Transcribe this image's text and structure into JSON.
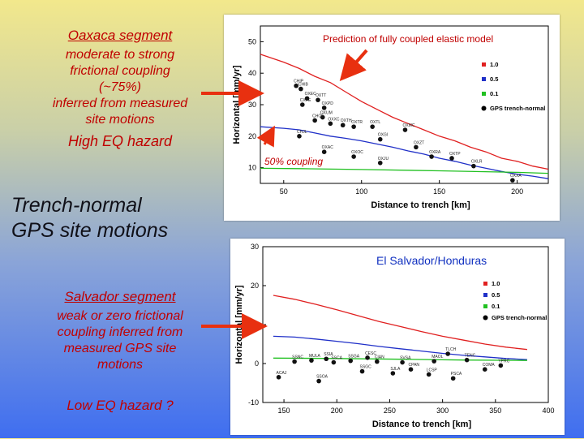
{
  "left": {
    "oaxaca_title": "Oaxaca segment",
    "oaxaca_desc": [
      "moderate to strong",
      "frictional coupling",
      "(~75%)",
      "inferred from measured",
      "site motions"
    ],
    "oaxaca_hazard": "High EQ hazard",
    "trench_title": [
      "Trench-normal",
      "GPS site motions"
    ],
    "salvador_title": "Salvador segment",
    "salvador_desc": [
      "weak or zero frictional",
      "coupling inferred from",
      "measured GPS site",
      "motions"
    ],
    "salvador_hazard": "Low EQ hazard ?"
  },
  "colors": {
    "model_high": "#e02020",
    "model_mid": "#2030c8",
    "model_low": "#20c020",
    "arrow": "#e83010",
    "annotation": "#c00000"
  },
  "chart_data": [
    {
      "type": "scatter",
      "annotation": "Prediction of fully coupled elastic model",
      "inner_label": "50% coupling",
      "xlabel": "Distance to trench [km]",
      "ylabel": "Horizontal [mm/yr]",
      "xlim": [
        35,
        220
      ],
      "ylim": [
        5,
        55
      ],
      "xticks": [
        50,
        100,
        150,
        200
      ],
      "yticks": [
        10,
        20,
        30,
        40,
        50
      ],
      "legend_position": "right",
      "legend": [
        {
          "label": "1.0",
          "color": "#e02020"
        },
        {
          "label": "0.5",
          "color": "#2030c8"
        },
        {
          "label": "0.1",
          "color": "#20c020"
        },
        {
          "label": "GPS trench-normal",
          "color": "#000000"
        }
      ],
      "series": [
        {
          "name": "1.0",
          "color": "#e02020",
          "x": [
            35,
            50,
            60,
            70,
            80,
            90,
            100,
            110,
            120,
            130,
            140,
            150,
            160,
            170,
            180,
            190,
            200,
            210,
            220
          ],
          "y": [
            46,
            43.5,
            41.5,
            39,
            37,
            34,
            31,
            28.5,
            26,
            24,
            22,
            20,
            18.5,
            16.5,
            15,
            13,
            12,
            10.5,
            9.5
          ]
        },
        {
          "name": "0.5",
          "color": "#2030c8",
          "x": [
            35,
            50,
            60,
            70,
            80,
            90,
            100,
            110,
            120,
            130,
            140,
            150,
            160,
            170,
            180,
            190,
            200,
            210,
            220
          ],
          "y": [
            23,
            22.5,
            22,
            21,
            20,
            19.3,
            18.5,
            17.5,
            16.5,
            15.3,
            14.3,
            13,
            12,
            10.8,
            9.8,
            8.8,
            7.9,
            7.3,
            6.5
          ]
        },
        {
          "name": "0.1",
          "color": "#20c020",
          "x": [
            35,
            60,
            100,
            150,
            200,
            220
          ],
          "y": [
            9.8,
            9.7,
            9.4,
            9,
            8.5,
            8.2
          ]
        }
      ],
      "points": [
        {
          "x": 58,
          "y": 36,
          "label": "CHIP"
        },
        {
          "x": 61,
          "y": 35,
          "label": "CHIB"
        },
        {
          "x": 65,
          "y": 32,
          "label": "OXEC"
        },
        {
          "x": 72,
          "y": 31.5,
          "label": "OXTT"
        },
        {
          "x": 62,
          "y": 30,
          "label": "CXPE"
        },
        {
          "x": 76,
          "y": 29,
          "label": "OXPD"
        },
        {
          "x": 75,
          "y": 26,
          "label": "OXUM"
        },
        {
          "x": 70,
          "y": 25,
          "label": "CHOE"
        },
        {
          "x": 80,
          "y": 24,
          "label": "OXXC"
        },
        {
          "x": 88,
          "y": 23.5,
          "label": "OXTH"
        },
        {
          "x": 95,
          "y": 23,
          "label": "OXTR"
        },
        {
          "x": 107,
          "y": 23,
          "label": "OXTL"
        },
        {
          "x": 128,
          "y": 22,
          "label": "OXMC"
        },
        {
          "x": 60,
          "y": 20,
          "label": "CHJL"
        },
        {
          "x": 112,
          "y": 19,
          "label": "OXGI"
        },
        {
          "x": 135,
          "y": 16.5,
          "label": "OXZT"
        },
        {
          "x": 76,
          "y": 15,
          "label": "OXAC"
        },
        {
          "x": 95,
          "y": 13.5,
          "label": "OXOC"
        },
        {
          "x": 145,
          "y": 13.5,
          "label": "OXRA"
        },
        {
          "x": 158,
          "y": 13,
          "label": "OXTP"
        },
        {
          "x": 112,
          "y": 11.5,
          "label": "OXJU"
        },
        {
          "x": 172,
          "y": 10.5,
          "label": "OXLR"
        },
        {
          "x": 197,
          "y": 6,
          "label": "OXXA"
        }
      ]
    },
    {
      "type": "scatter",
      "title": "El Salvador/Honduras",
      "xlabel": "Distance to trench [km]",
      "ylabel": "Horizontal [mm/yr]",
      "xlim": [
        130,
        400
      ],
      "ylim": [
        -10,
        30
      ],
      "xticks": [
        150,
        200,
        250,
        300,
        350,
        400
      ],
      "yticks": [
        -10,
        0,
        10,
        20,
        30
      ],
      "legend_position": "right",
      "legend": [
        {
          "label": "1.0",
          "color": "#e02020"
        },
        {
          "label": "0.5",
          "color": "#2030c8"
        },
        {
          "label": "0.1",
          "color": "#20c020"
        },
        {
          "label": "GPS trench-normal",
          "color": "#000000"
        }
      ],
      "series": [
        {
          "name": "1.0",
          "color": "#e02020",
          "x": [
            140,
            160,
            180,
            200,
            220,
            240,
            260,
            280,
            300,
            320,
            340,
            360,
            380
          ],
          "y": [
            17.5,
            16.5,
            15.2,
            13.8,
            12.3,
            10.8,
            9.5,
            8.2,
            7,
            6,
            5,
            4.2,
            3.6
          ]
        },
        {
          "name": "0.5",
          "color": "#2030c8",
          "x": [
            140,
            160,
            180,
            200,
            220,
            240,
            260,
            280,
            300,
            320,
            340,
            360,
            380
          ],
          "y": [
            7,
            6.8,
            6.3,
            5.7,
            5.1,
            4.4,
            3.8,
            3.2,
            2.6,
            2.1,
            1.7,
            1.3,
            1
          ]
        },
        {
          "name": "0.1",
          "color": "#20c020",
          "x": [
            140,
            200,
            260,
            320,
            380
          ],
          "y": [
            1.4,
            1.3,
            1.1,
            0.9,
            0.8
          ]
        }
      ],
      "points": [
        {
          "x": 160,
          "y": 0.5,
          "label": "SSNC"
        },
        {
          "x": 176,
          "y": 0.8,
          "label": "MULA"
        },
        {
          "x": 190,
          "y": 1.2,
          "label": "SSIA"
        },
        {
          "x": 197,
          "y": 0.3,
          "label": "SSCA"
        },
        {
          "x": 213,
          "y": 0.7,
          "label": "SSGA"
        },
        {
          "x": 229,
          "y": 1.5,
          "label": "CESC"
        },
        {
          "x": 238,
          "y": 0.5,
          "label": "CIAN"
        },
        {
          "x": 262,
          "y": 0.3,
          "label": "SVSA"
        },
        {
          "x": 292,
          "y": 0.6,
          "label": "MAOL"
        },
        {
          "x": 305,
          "y": 2.5,
          "label": "TLCH"
        },
        {
          "x": 323,
          "y": 0.9,
          "label": "TENC"
        },
        {
          "x": 355,
          "y": -0.5,
          "label": "YPRC"
        },
        {
          "x": 145,
          "y": -3.5,
          "label": "ACAJ"
        },
        {
          "x": 183,
          "y": -4.5,
          "label": "SSOA"
        },
        {
          "x": 224,
          "y": -2,
          "label": "SSGC"
        },
        {
          "x": 253,
          "y": -2.5,
          "label": "SJLA"
        },
        {
          "x": 270,
          "y": -1.5,
          "label": "CPAN"
        },
        {
          "x": 287,
          "y": -2.8,
          "label": "LCSP"
        },
        {
          "x": 310,
          "y": -3.8,
          "label": "PSCA"
        },
        {
          "x": 340,
          "y": -1.5,
          "label": "COMA"
        }
      ]
    }
  ]
}
